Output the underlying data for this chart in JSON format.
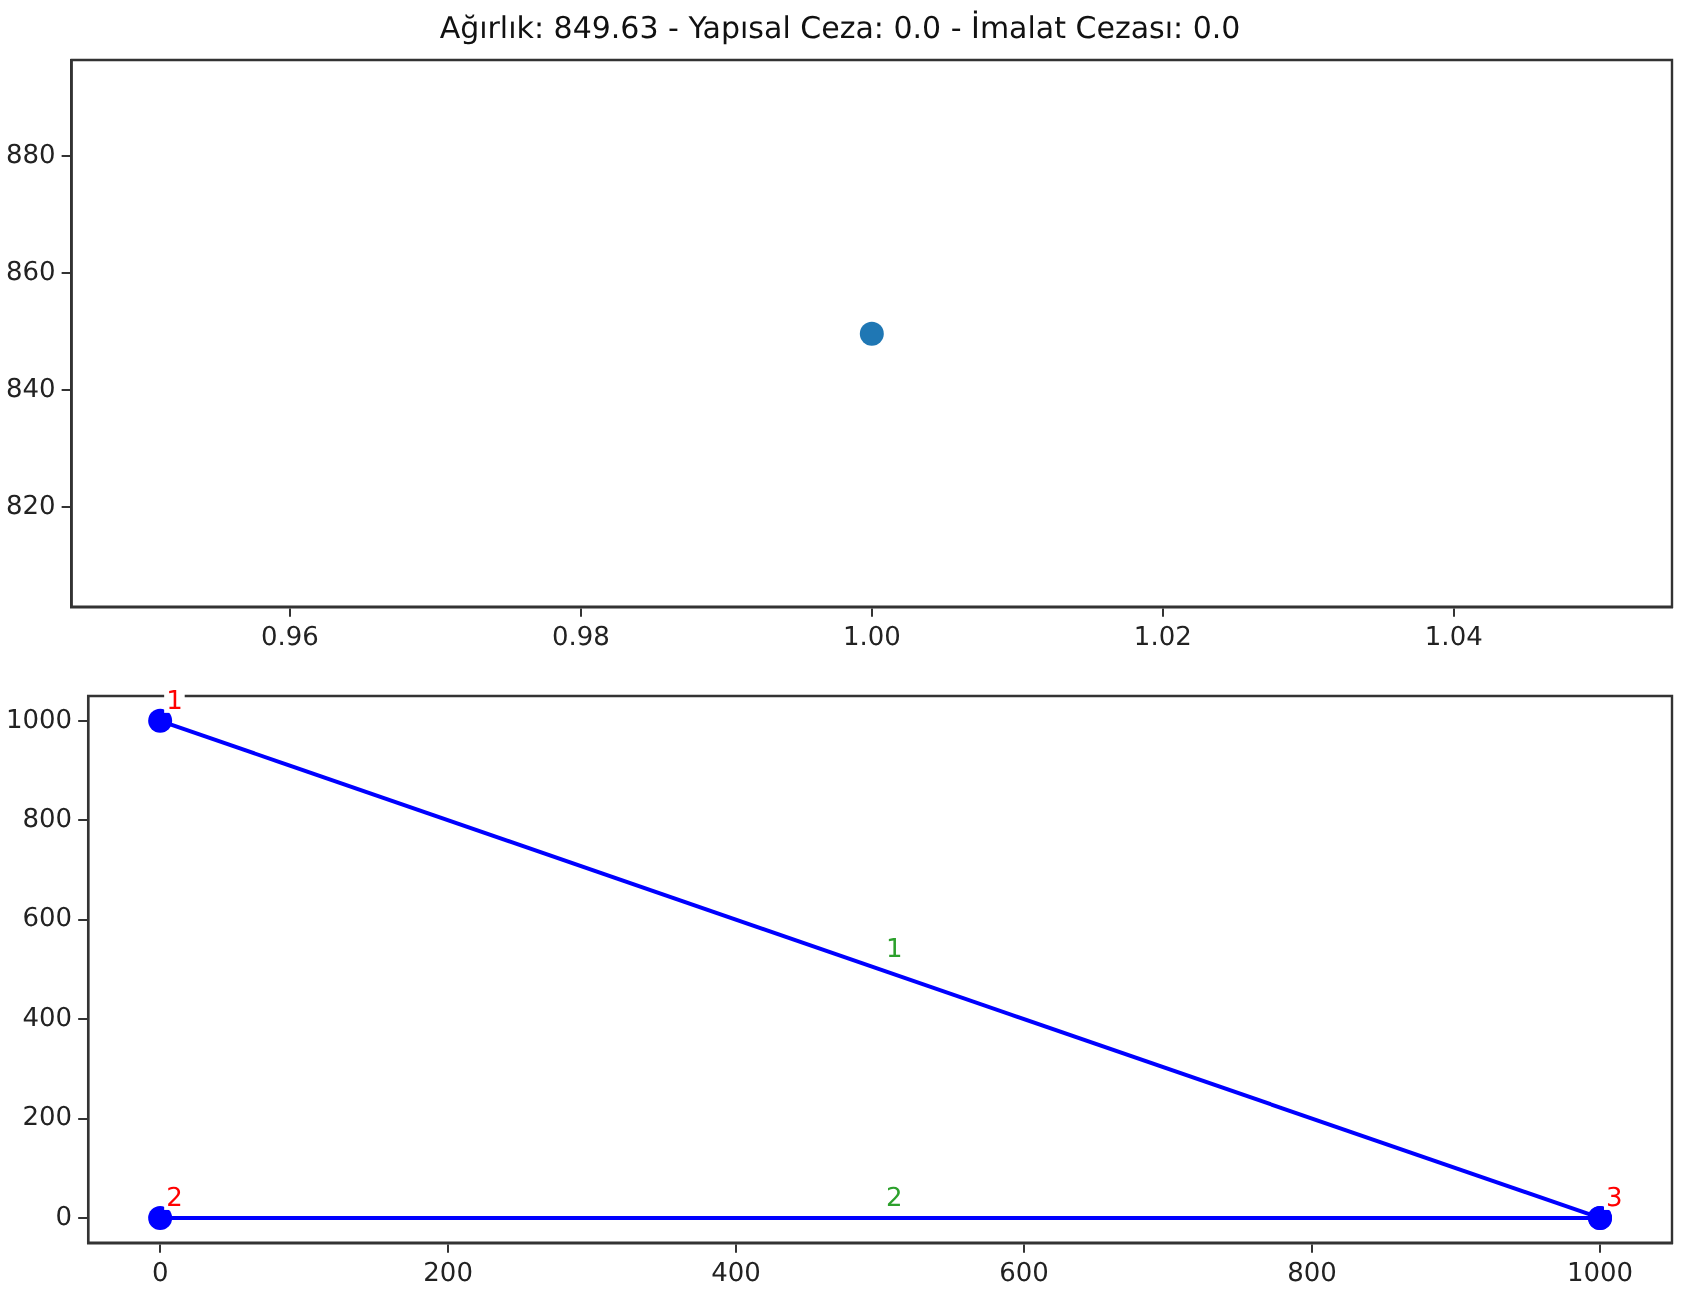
{
  "chart_data": [
    {
      "type": "scatter",
      "title": "Ağırlık: 849.63 - Yapısal Ceza: 0.0 - İmalat Cezası: 0.0",
      "x": [
        1.0
      ],
      "values": [
        849.6
      ],
      "color": "#1f77b4",
      "marker": "circle",
      "xlim": [
        0.945,
        1.055
      ],
      "xticks": [
        {
          "value": 0.96,
          "label": "0.96"
        },
        {
          "value": 0.98,
          "label": "0.98"
        },
        {
          "value": 1.0,
          "label": "1.00"
        },
        {
          "value": 1.02,
          "label": "1.02"
        },
        {
          "value": 1.04,
          "label": "1.04"
        }
      ],
      "ylim": [
        802.9,
        896.4
      ],
      "yticks": [
        820,
        840,
        860,
        880
      ]
    },
    {
      "type": "line",
      "marker": "circle",
      "line_style": "solid",
      "x": [
        0,
        1000
      ],
      "series": [
        {
          "color": "#0000ff",
          "values": [
            1000,
            0
          ]
        },
        {
          "color": "#0000ff",
          "values": [
            0,
            0
          ]
        }
      ],
      "annotations": [
        {
          "text": "1",
          "x": 0,
          "y": 1000
        },
        {
          "text": "2",
          "x": 0,
          "y": 0
        },
        {
          "text": "3",
          "x": 1000,
          "y": 0
        },
        {
          "text": "1",
          "x": 500,
          "y": 500
        },
        {
          "text": "2",
          "x": 500,
          "y": 0
        }
      ],
      "xlim": [
        -50,
        1050
      ],
      "xticks": [
        0,
        200,
        400,
        600,
        800,
        1000
      ],
      "ylim": [
        -50,
        1050
      ],
      "yticks": [
        0,
        200,
        400,
        600,
        800,
        1000
      ]
    }
  ]
}
